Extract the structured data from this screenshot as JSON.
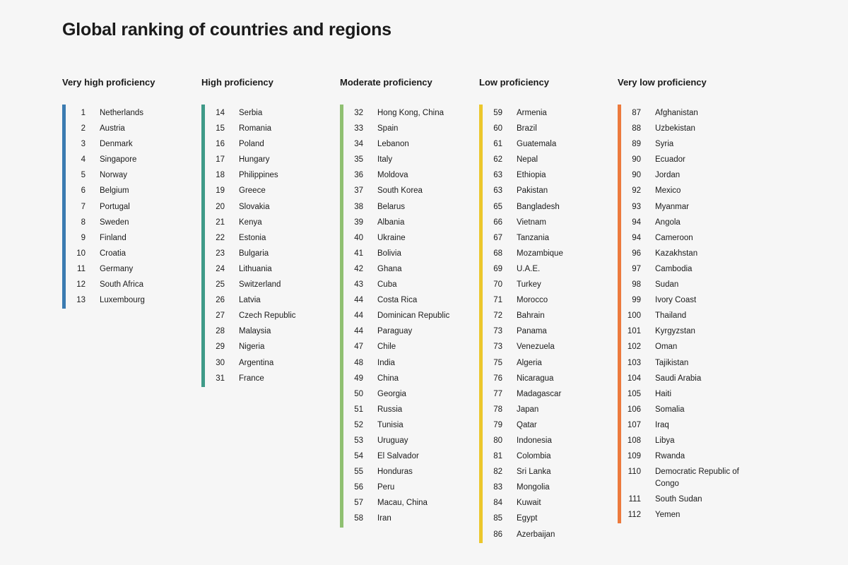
{
  "title": "Global ranking of countries and regions",
  "columns": [
    {
      "heading": "Very high proficiency",
      "color": "#3b7bb1",
      "entries": [
        {
          "rank": "1",
          "name": "Netherlands"
        },
        {
          "rank": "2",
          "name": "Austria"
        },
        {
          "rank": "3",
          "name": "Denmark"
        },
        {
          "rank": "4",
          "name": "Singapore"
        },
        {
          "rank": "5",
          "name": "Norway"
        },
        {
          "rank": "6",
          "name": "Belgium"
        },
        {
          "rank": "7",
          "name": "Portugal"
        },
        {
          "rank": "8",
          "name": "Sweden"
        },
        {
          "rank": "9",
          "name": "Finland"
        },
        {
          "rank": "10",
          "name": "Croatia"
        },
        {
          "rank": "11",
          "name": "Germany"
        },
        {
          "rank": "12",
          "name": "South Africa"
        },
        {
          "rank": "13",
          "name": "Luxembourg"
        }
      ]
    },
    {
      "heading": "High proficiency",
      "color": "#3f9a88",
      "entries": [
        {
          "rank": "14",
          "name": "Serbia"
        },
        {
          "rank": "15",
          "name": "Romania"
        },
        {
          "rank": "16",
          "name": "Poland"
        },
        {
          "rank": "17",
          "name": "Hungary"
        },
        {
          "rank": "18",
          "name": "Philippines"
        },
        {
          "rank": "19",
          "name": "Greece"
        },
        {
          "rank": "20",
          "name": "Slovakia"
        },
        {
          "rank": "21",
          "name": "Kenya"
        },
        {
          "rank": "22",
          "name": "Estonia"
        },
        {
          "rank": "23",
          "name": "Bulgaria"
        },
        {
          "rank": "24",
          "name": "Lithuania"
        },
        {
          "rank": "25",
          "name": "Switzerland"
        },
        {
          "rank": "26",
          "name": "Latvia"
        },
        {
          "rank": "27",
          "name": "Czech Republic"
        },
        {
          "rank": "28",
          "name": "Malaysia"
        },
        {
          "rank": "29",
          "name": "Nigeria"
        },
        {
          "rank": "30",
          "name": "Argentina"
        },
        {
          "rank": "31",
          "name": "France"
        }
      ]
    },
    {
      "heading": "Moderate proficiency",
      "color": "#8fc071",
      "entries": [
        {
          "rank": "32",
          "name": "Hong Kong, China"
        },
        {
          "rank": "33",
          "name": "Spain"
        },
        {
          "rank": "34",
          "name": "Lebanon"
        },
        {
          "rank": "35",
          "name": "Italy"
        },
        {
          "rank": "36",
          "name": "Moldova"
        },
        {
          "rank": "37",
          "name": "South Korea"
        },
        {
          "rank": "38",
          "name": "Belarus"
        },
        {
          "rank": "39",
          "name": "Albania"
        },
        {
          "rank": "40",
          "name": "Ukraine"
        },
        {
          "rank": "41",
          "name": "Bolivia"
        },
        {
          "rank": "42",
          "name": "Ghana"
        },
        {
          "rank": "43",
          "name": "Cuba"
        },
        {
          "rank": "44",
          "name": "Costa Rica"
        },
        {
          "rank": "44",
          "name": "Dominican Republic"
        },
        {
          "rank": "44",
          "name": "Paraguay"
        },
        {
          "rank": "47",
          "name": "Chile"
        },
        {
          "rank": "48",
          "name": "India"
        },
        {
          "rank": "49",
          "name": "China"
        },
        {
          "rank": "50",
          "name": "Georgia"
        },
        {
          "rank": "51",
          "name": "Russia"
        },
        {
          "rank": "52",
          "name": "Tunisia"
        },
        {
          "rank": "53",
          "name": "Uruguay"
        },
        {
          "rank": "54",
          "name": "El Salvador"
        },
        {
          "rank": "55",
          "name": "Honduras"
        },
        {
          "rank": "56",
          "name": "Peru"
        },
        {
          "rank": "57",
          "name": "Macau, China"
        },
        {
          "rank": "58",
          "name": "Iran"
        }
      ]
    },
    {
      "heading": "Low proficiency",
      "color": "#ecc72c",
      "entries": [
        {
          "rank": "59",
          "name": "Armenia"
        },
        {
          "rank": "60",
          "name": "Brazil"
        },
        {
          "rank": "61",
          "name": "Guatemala"
        },
        {
          "rank": "62",
          "name": "Nepal"
        },
        {
          "rank": "63",
          "name": "Ethiopia"
        },
        {
          "rank": "63",
          "name": "Pakistan"
        },
        {
          "rank": "65",
          "name": "Bangladesh"
        },
        {
          "rank": "66",
          "name": "Vietnam"
        },
        {
          "rank": "67",
          "name": "Tanzania"
        },
        {
          "rank": "68",
          "name": "Mozambique"
        },
        {
          "rank": "69",
          "name": "U.A.E."
        },
        {
          "rank": "70",
          "name": "Turkey"
        },
        {
          "rank": "71",
          "name": "Morocco"
        },
        {
          "rank": "72",
          "name": "Bahrain"
        },
        {
          "rank": "73",
          "name": "Panama"
        },
        {
          "rank": "73",
          "name": "Venezuela"
        },
        {
          "rank": "75",
          "name": "Algeria"
        },
        {
          "rank": "76",
          "name": "Nicaragua"
        },
        {
          "rank": "77",
          "name": "Madagascar"
        },
        {
          "rank": "78",
          "name": "Japan"
        },
        {
          "rank": "79",
          "name": "Qatar"
        },
        {
          "rank": "80",
          "name": "Indonesia"
        },
        {
          "rank": "81",
          "name": "Colombia"
        },
        {
          "rank": "82",
          "name": "Sri Lanka"
        },
        {
          "rank": "83",
          "name": "Mongolia"
        },
        {
          "rank": "84",
          "name": "Kuwait"
        },
        {
          "rank": "85",
          "name": "Egypt"
        },
        {
          "rank": "86",
          "name": "Azerbaijan"
        }
      ]
    },
    {
      "heading": "Very low proficiency",
      "color": "#ec7a3d",
      "entries": [
        {
          "rank": "87",
          "name": "Afghanistan"
        },
        {
          "rank": "88",
          "name": "Uzbekistan"
        },
        {
          "rank": "89",
          "name": "Syria"
        },
        {
          "rank": "90",
          "name": "Ecuador"
        },
        {
          "rank": "90",
          "name": "Jordan"
        },
        {
          "rank": "92",
          "name": "Mexico"
        },
        {
          "rank": "93",
          "name": "Myanmar"
        },
        {
          "rank": "94",
          "name": "Angola"
        },
        {
          "rank": "94",
          "name": "Cameroon"
        },
        {
          "rank": "96",
          "name": "Kazakhstan"
        },
        {
          "rank": "97",
          "name": "Cambodia"
        },
        {
          "rank": "98",
          "name": "Sudan"
        },
        {
          "rank": "99",
          "name": "Ivory Coast"
        },
        {
          "rank": "100",
          "name": "Thailand"
        },
        {
          "rank": "101",
          "name": "Kyrgyzstan"
        },
        {
          "rank": "102",
          "name": "Oman"
        },
        {
          "rank": "103",
          "name": "Tajikistan"
        },
        {
          "rank": "104",
          "name": "Saudi Arabia"
        },
        {
          "rank": "105",
          "name": "Haiti"
        },
        {
          "rank": "106",
          "name": "Somalia"
        },
        {
          "rank": "107",
          "name": "Iraq"
        },
        {
          "rank": "108",
          "name": "Libya"
        },
        {
          "rank": "109",
          "name": "Rwanda"
        },
        {
          "rank": "110",
          "name": "Democratic Republic of Congo"
        },
        {
          "rank": "111",
          "name": "South Sudan"
        },
        {
          "rank": "112",
          "name": "Yemen"
        }
      ]
    }
  ]
}
